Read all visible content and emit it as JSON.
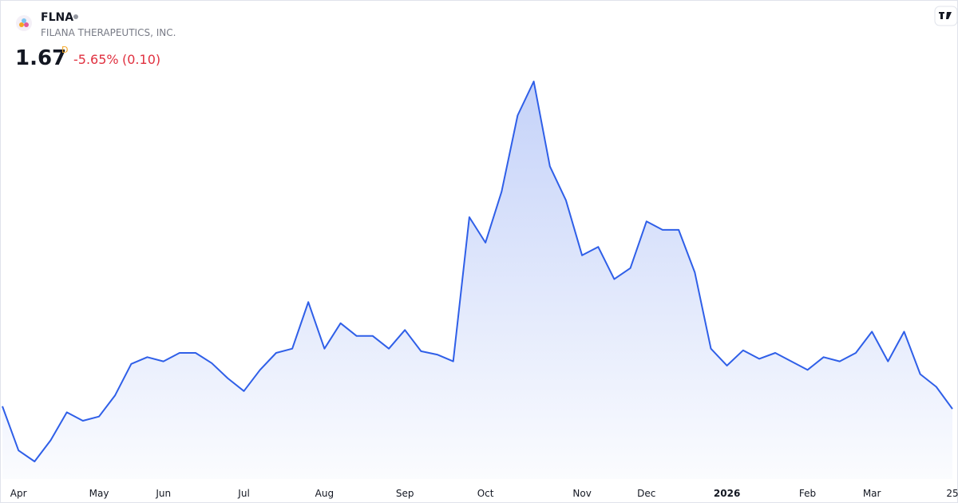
{
  "chart_data": {
    "type": "area",
    "symbol": "FLNA",
    "company": "FILANA THERAPEUTICS, INC.",
    "price": 1.67,
    "price_flag": "D",
    "change_percent": "-5.65%",
    "change_abs": "(0.10)",
    "color": "#2f5fe8",
    "categories": [
      null,
      "Apr",
      null,
      null,
      null,
      null,
      "May",
      null,
      null,
      null,
      "Jun",
      null,
      null,
      null,
      null,
      "Jul",
      null,
      null,
      null,
      null,
      "Aug",
      null,
      null,
      null,
      null,
      "Sep",
      null,
      null,
      null,
      null,
      "Oct",
      null,
      null,
      null,
      null,
      null,
      "Nov",
      null,
      null,
      null,
      "Dec",
      null,
      null,
      null,
      null,
      "2026",
      null,
      null,
      null,
      null,
      "Feb",
      null,
      null,
      null,
      "Mar",
      null,
      null,
      null,
      null,
      "25"
    ],
    "values": [
      1.7,
      1.18,
      1.05,
      1.3,
      1.63,
      1.53,
      1.58,
      1.83,
      2.2,
      2.28,
      2.23,
      2.33,
      2.33,
      2.21,
      2.03,
      1.88,
      2.13,
      2.33,
      2.38,
      2.93,
      2.38,
      2.68,
      2.53,
      2.53,
      2.38,
      2.6,
      2.35,
      2.31,
      2.23,
      3.93,
      3.63,
      4.23,
      5.13,
      5.53,
      4.53,
      4.13,
      3.48,
      3.58,
      3.2,
      3.33,
      3.88,
      3.78,
      3.78,
      3.28,
      2.38,
      2.18,
      2.36,
      2.26,
      2.33,
      2.23,
      2.13,
      2.28,
      2.23,
      2.33,
      2.58,
      2.23,
      2.58,
      2.08,
      1.93,
      1.67
    ]
  }
}
